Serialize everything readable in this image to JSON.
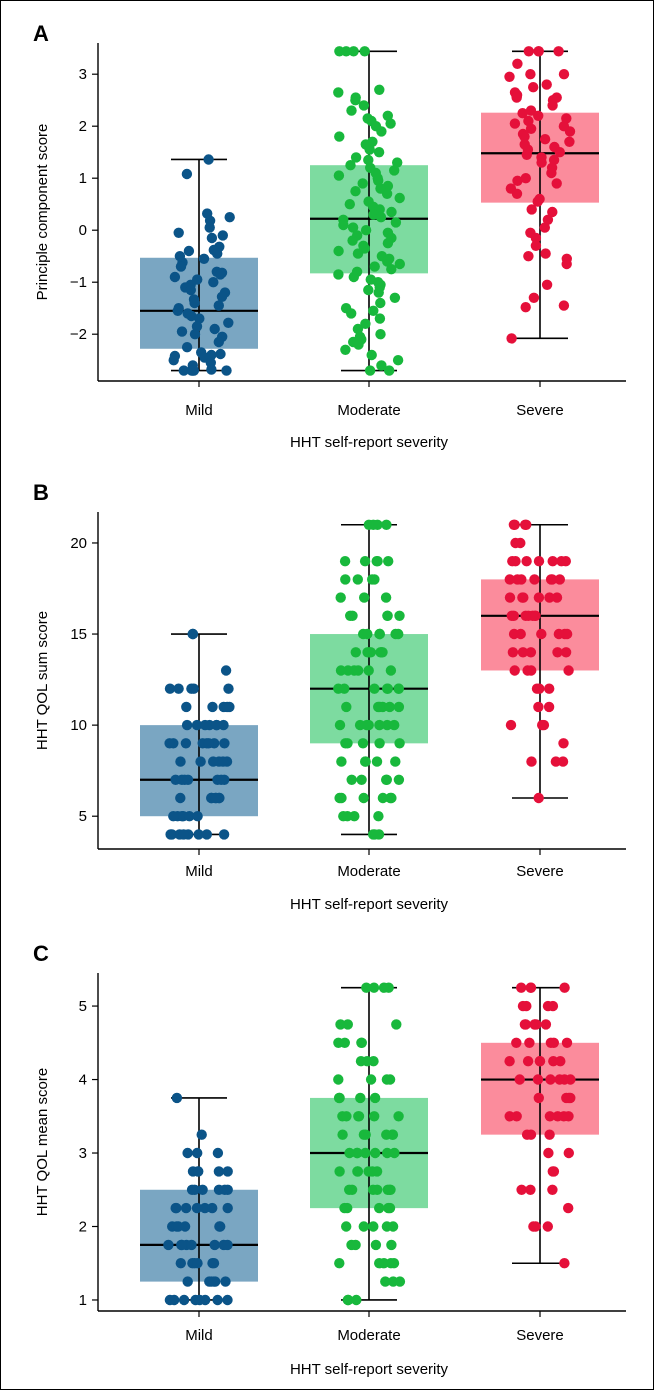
{
  "colors": {
    "Mild": {
      "box": "#7aa6c2",
      "dot": "#0b5488"
    },
    "Moderate": {
      "box": "#7ddba0",
      "dot": "#18b83c"
    },
    "Severe": {
      "box": "#fb8c9c",
      "dot": "#e5103a"
    }
  },
  "chart_data": [
    {
      "type": "box",
      "panel": "A",
      "ylabel": "Principle component score",
      "xlabel": "HHT self-report severity",
      "categories": [
        "Mild",
        "Moderate",
        "Severe"
      ],
      "ylim": [
        -2.9,
        3.6
      ],
      "yticks": [
        -2,
        -1,
        0,
        1,
        2,
        3
      ],
      "ytick_labels": [
        "−2",
        "−1",
        "0",
        "1",
        "2",
        "3"
      ],
      "boxes": [
        {
          "category": "Mild",
          "whisker_low": -2.7,
          "q1": -2.28,
          "median": -1.55,
          "q3": -0.53,
          "whisker_high": 1.36
        },
        {
          "category": "Moderate",
          "whisker_low": -2.7,
          "q1": -0.83,
          "median": 0.22,
          "q3": 1.25,
          "whisker_high": 3.44
        },
        {
          "category": "Severe",
          "whisker_low": -2.08,
          "q1": 0.53,
          "median": 1.48,
          "q3": 2.26,
          "whisker_high": 3.44
        }
      ],
      "points": [
        {
          "category": "Mild",
          "values": [
            1.36,
            1.08,
            0.32,
            0.25,
            0.18,
            0.05,
            -0.05,
            -0.1,
            -0.15,
            -0.32,
            -0.38,
            -0.4,
            -0.45,
            -0.5,
            -0.55,
            -0.62,
            -0.7,
            -0.8,
            -0.82,
            -0.85,
            -0.9,
            -0.95,
            -1.0,
            -1.05,
            -1.1,
            -1.15,
            -1.2,
            -1.28,
            -1.33,
            -1.4,
            -1.45,
            -1.5,
            -1.55,
            -1.6,
            -1.65,
            -1.7,
            -1.78,
            -1.85,
            -1.9,
            -1.95,
            -2.0,
            -2.05,
            -2.15,
            -2.25,
            -2.35,
            -2.38,
            -2.4,
            -2.42,
            -2.45,
            -2.5,
            -2.55,
            -2.6,
            -2.68,
            -2.7,
            -2.7,
            -2.7,
            -2.7,
            -2.7
          ]
        },
        {
          "category": "Moderate",
          "values": [
            3.44,
            3.44,
            3.44,
            3.44,
            2.7,
            2.65,
            2.55,
            2.5,
            2.4,
            2.3,
            2.2,
            2.15,
            2.1,
            2.05,
            2.0,
            1.9,
            1.8,
            1.7,
            1.65,
            1.55,
            1.5,
            1.4,
            1.35,
            1.3,
            1.25,
            1.2,
            1.15,
            1.1,
            1.05,
            1.0,
            0.95,
            0.9,
            0.85,
            0.8,
            0.75,
            0.7,
            0.62,
            0.55,
            0.5,
            0.45,
            0.4,
            0.35,
            0.3,
            0.25,
            0.2,
            0.15,
            0.1,
            0.05,
            0.0,
            -0.05,
            -0.1,
            -0.15,
            -0.2,
            -0.25,
            -0.3,
            -0.35,
            -0.4,
            -0.45,
            -0.5,
            -0.55,
            -0.6,
            -0.65,
            -0.7,
            -0.75,
            -0.8,
            -0.85,
            -0.9,
            -0.95,
            -1.0,
            -1.05,
            -1.1,
            -1.15,
            -1.2,
            -1.3,
            -1.4,
            -1.5,
            -1.55,
            -1.6,
            -1.7,
            -1.8,
            -1.9,
            -2.0,
            -2.05,
            -2.1,
            -2.15,
            -2.2,
            -2.3,
            -2.4,
            -2.5,
            -2.6,
            -2.7,
            -2.7
          ]
        },
        {
          "category": "Severe",
          "values": [
            3.44,
            3.44,
            3.44,
            3.44,
            3.2,
            3.0,
            3.0,
            2.95,
            2.8,
            2.75,
            2.65,
            2.6,
            2.58,
            2.55,
            2.55,
            2.5,
            2.4,
            2.3,
            2.25,
            2.2,
            2.15,
            2.1,
            2.05,
            2.0,
            1.95,
            1.9,
            1.85,
            1.8,
            1.75,
            1.7,
            1.65,
            1.6,
            1.55,
            1.5,
            1.45,
            1.4,
            1.35,
            1.3,
            1.2,
            1.1,
            1.0,
            0.95,
            0.9,
            0.8,
            0.7,
            0.6,
            0.55,
            0.4,
            0.35,
            0.2,
            0.05,
            -0.05,
            -0.15,
            -0.3,
            -0.45,
            -0.5,
            -0.55,
            -0.65,
            -1.05,
            -1.3,
            -1.45,
            -1.48,
            -2.08
          ]
        }
      ]
    },
    {
      "type": "box",
      "panel": "B",
      "ylabel": "HHT QOL sum score",
      "xlabel": "HHT self-report severity",
      "categories": [
        "Mild",
        "Moderate",
        "Severe"
      ],
      "ylim": [
        3.2,
        21.7
      ],
      "yticks": [
        5,
        10,
        15,
        20
      ],
      "ytick_labels": [
        "5",
        "10",
        "15",
        "20"
      ],
      "boxes": [
        {
          "category": "Mild",
          "whisker_low": 4,
          "q1": 5,
          "median": 7,
          "q3": 10,
          "whisker_high": 15
        },
        {
          "category": "Moderate",
          "whisker_low": 4,
          "q1": 9,
          "median": 12,
          "q3": 15,
          "whisker_high": 21
        },
        {
          "category": "Severe",
          "whisker_low": 6,
          "q1": 13,
          "median": 16,
          "q3": 18,
          "whisker_high": 21
        }
      ],
      "points": [
        {
          "category": "Mild",
          "values": [
            15,
            15,
            13,
            12,
            12,
            12,
            12,
            12,
            11,
            11,
            11,
            11,
            11,
            10,
            10,
            10,
            10,
            10,
            10,
            10,
            9,
            9,
            9,
            9,
            9,
            9,
            9,
            9,
            8,
            8,
            8,
            8,
            8,
            8,
            7,
            7,
            7,
            7,
            7,
            7,
            7,
            6,
            6,
            6,
            6,
            6,
            6,
            6,
            5,
            5,
            5,
            5,
            5,
            5,
            4,
            4,
            4,
            4,
            4,
            4,
            4,
            4
          ]
        },
        {
          "category": "Moderate",
          "values": [
            21,
            21,
            21,
            21,
            19,
            19,
            19,
            19,
            19,
            18,
            18,
            18,
            18,
            17,
            17,
            17,
            16,
            16,
            16,
            16,
            16,
            15,
            15,
            15,
            15,
            15,
            15,
            14,
            14,
            14,
            14,
            14,
            14,
            14,
            13,
            13,
            13,
            13,
            13,
            13,
            12,
            12,
            12,
            12,
            12,
            12,
            12,
            11,
            11,
            11,
            11,
            11,
            11,
            10,
            10,
            10,
            10,
            10,
            10,
            10,
            9,
            9,
            9,
            9,
            9,
            8,
            8,
            8,
            8,
            8,
            7,
            7,
            7,
            7,
            7,
            6,
            6,
            6,
            6,
            6,
            6,
            5,
            5,
            5,
            5,
            4,
            4,
            4
          ]
        },
        {
          "category": "Severe",
          "values": [
            21,
            21,
            21,
            21,
            20,
            20,
            19,
            19,
            19,
            19,
            19,
            19,
            19,
            18,
            18,
            18,
            18,
            18,
            18,
            18,
            17,
            17,
            17,
            17,
            17,
            17,
            16,
            16,
            16,
            16,
            16,
            16,
            16,
            15,
            15,
            15,
            15,
            15,
            15,
            14,
            14,
            14,
            14,
            14,
            13,
            13,
            13,
            13,
            12,
            12,
            12,
            11,
            11,
            10,
            10,
            10,
            9,
            8,
            8,
            8,
            6
          ]
        }
      ]
    },
    {
      "type": "box",
      "panel": "C",
      "ylabel": "HHT QOL mean score",
      "xlabel": "HHT self-report severity",
      "categories": [
        "Mild",
        "Moderate",
        "Severe"
      ],
      "ylim": [
        0.85,
        5.45
      ],
      "yticks": [
        1,
        2,
        3,
        4,
        5
      ],
      "ytick_labels": [
        "1",
        "2",
        "3",
        "4",
        "5"
      ],
      "boxes": [
        {
          "category": "Mild",
          "whisker_low": 1.0,
          "q1": 1.25,
          "median": 1.75,
          "q3": 2.5,
          "whisker_high": 3.75
        },
        {
          "category": "Moderate",
          "whisker_low": 1.0,
          "q1": 2.25,
          "median": 3.0,
          "q3": 3.75,
          "whisker_high": 5.25
        },
        {
          "category": "Severe",
          "whisker_low": 1.5,
          "q1": 3.25,
          "median": 4.0,
          "q3": 4.5,
          "whisker_high": 5.25
        }
      ],
      "points": [
        {
          "category": "Mild",
          "values": [
            3.75,
            3.25,
            3.0,
            3.0,
            3.0,
            2.75,
            2.75,
            2.75,
            2.75,
            2.75,
            2.5,
            2.5,
            2.5,
            2.5,
            2.5,
            2.5,
            2.25,
            2.25,
            2.25,
            2.25,
            2.25,
            2.25,
            2.25,
            2.0,
            2.0,
            2.0,
            2.0,
            2.0,
            2.0,
            1.75,
            1.75,
            1.75,
            1.75,
            1.75,
            1.75,
            1.75,
            1.75,
            1.5,
            1.5,
            1.5,
            1.5,
            1.5,
            1.5,
            1.25,
            1.25,
            1.25,
            1.25,
            1.25,
            1.25,
            1.0,
            1.0,
            1.0,
            1.0,
            1.0,
            1.0,
            1.0,
            1.0
          ]
        },
        {
          "category": "Moderate",
          "values": [
            5.25,
            5.25,
            5.25,
            5.25,
            4.75,
            4.75,
            4.75,
            4.5,
            4.5,
            4.5,
            4.5,
            4.25,
            4.25,
            4.25,
            4.0,
            4.0,
            4.0,
            4.0,
            3.75,
            3.75,
            3.75,
            3.75,
            3.5,
            3.5,
            3.5,
            3.5,
            3.5,
            3.5,
            3.25,
            3.25,
            3.25,
            3.25,
            3.25,
            3.25,
            3.0,
            3.0,
            3.0,
            3.0,
            3.0,
            3.0,
            3.0,
            2.75,
            2.75,
            2.75,
            2.75,
            2.75,
            2.75,
            2.5,
            2.5,
            2.5,
            2.5,
            2.5,
            2.5,
            2.5,
            2.25,
            2.25,
            2.25,
            2.25,
            2.25,
            2.0,
            2.0,
            2.0,
            2.0,
            2.0,
            1.75,
            1.75,
            1.75,
            1.75,
            1.5,
            1.5,
            1.5,
            1.5,
            1.5,
            1.25,
            1.25,
            1.25,
            1.0,
            1.0,
            1.0
          ]
        },
        {
          "category": "Severe",
          "values": [
            5.25,
            5.25,
            5.25,
            5.25,
            5.0,
            5.0,
            5.0,
            5.0,
            4.75,
            4.75,
            4.75,
            4.75,
            4.75,
            4.75,
            4.5,
            4.5,
            4.5,
            4.5,
            4.5,
            4.25,
            4.25,
            4.25,
            4.25,
            4.25,
            4.25,
            4.0,
            4.0,
            4.0,
            4.0,
            4.0,
            4.0,
            3.75,
            3.75,
            3.75,
            3.75,
            3.5,
            3.5,
            3.5,
            3.5,
            3.5,
            3.5,
            3.25,
            3.25,
            3.25,
            3.0,
            3.0,
            2.75,
            2.75,
            2.5,
            2.5,
            2.5,
            2.25,
            2.0,
            2.0,
            2.0,
            1.5
          ]
        }
      ]
    }
  ]
}
